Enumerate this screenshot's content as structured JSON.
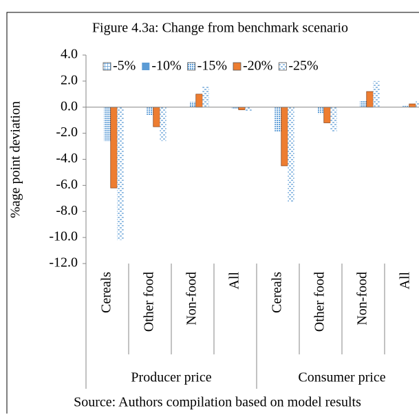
{
  "chart_data": {
    "type": "bar",
    "title": "Figure 4.3a: Change from benchmark scenario",
    "y_label": "%age point deviation",
    "source": "Source: Authors compilation based on model results",
    "category_groups": [
      "Producer price",
      "Consumer price"
    ],
    "categories": [
      "Cereals",
      "Other food",
      "Non-food",
      "All",
      "Cereals",
      "Other food",
      "Non-food",
      "All"
    ],
    "series": [
      {
        "name": "-5%",
        "color": "#5b9bd5",
        "pattern": "grid",
        "values": [
          0,
          0,
          0,
          0,
          0,
          0,
          0,
          0
        ]
      },
      {
        "name": "-10%",
        "color": "#5b9bd5",
        "pattern": "solid",
        "values": [
          0,
          0,
          0,
          0,
          0,
          0,
          0,
          0
        ]
      },
      {
        "name": "-15%",
        "color": "#5b9bd5",
        "pattern": "dots",
        "values": [
          -2.6,
          -0.6,
          0.4,
          -0.1,
          -1.9,
          -0.5,
          0.5,
          0.1
        ]
      },
      {
        "name": "-20%",
        "color": "#ed7d31",
        "pattern": "solid",
        "values": [
          -6.2,
          -1.5,
          1.0,
          -0.2,
          -4.5,
          -1.2,
          1.2,
          0.25
        ]
      },
      {
        "name": "-25%",
        "color": "#5b9bd5",
        "pattern": "dashes",
        "values": [
          -10.2,
          -2.6,
          1.6,
          -0.3,
          -7.3,
          -1.9,
          2.0,
          0.45
        ]
      }
    ],
    "ylim": [
      -12,
      4
    ],
    "yticks": [
      {
        "value": -12,
        "label": "-12.0"
      },
      {
        "value": -10,
        "label": "-10.0"
      },
      {
        "value": -8,
        "label": "-8.0"
      },
      {
        "value": -6,
        "label": "-6.0"
      },
      {
        "value": -4,
        "label": "-4.0"
      },
      {
        "value": -2,
        "label": "-2.0"
      },
      {
        "value": 0,
        "label": "0.0"
      },
      {
        "value": 2,
        "label": "2.0"
      },
      {
        "value": 4,
        "label": "4.0"
      }
    ],
    "grid": false,
    "legend": "top"
  }
}
